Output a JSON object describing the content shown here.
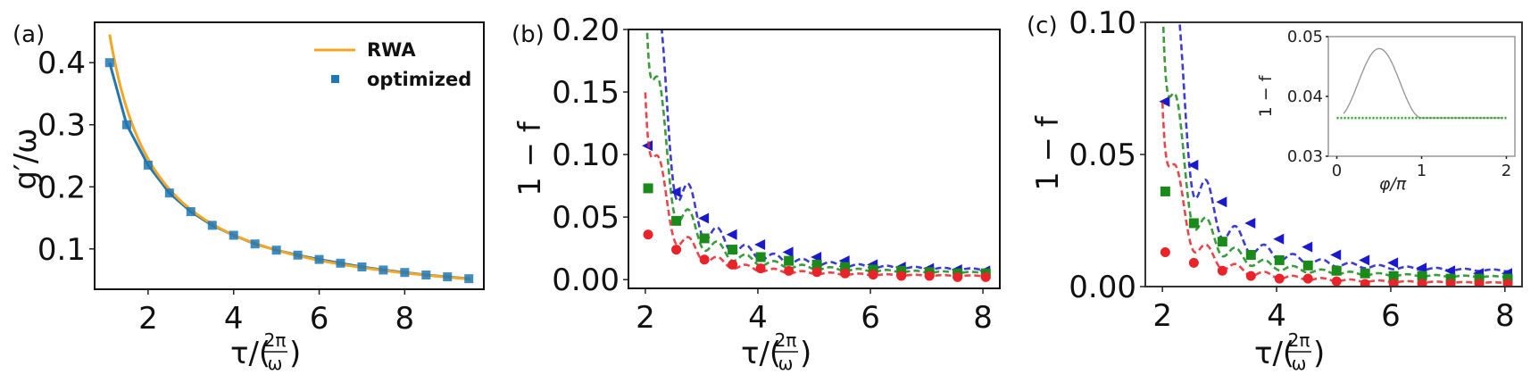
{
  "figure": {
    "panels": [
      "(a)",
      "(b)",
      "(c)"
    ]
  },
  "chart_data": [
    {
      "panel": "(a)",
      "type": "line",
      "title": "",
      "xlabel": "τ/(2π/ω)",
      "ylabel": "g′/ω",
      "xlim": [
        0.75,
        9.85
      ],
      "ylim": [
        0.035,
        0.465
      ],
      "xticks": [
        2,
        4,
        6,
        8
      ],
      "yticks": [
        0.1,
        0.2,
        0.3,
        0.4
      ],
      "xtick_labels": [
        "2",
        "4",
        "6",
        "8"
      ],
      "ytick_labels": [
        "0.1",
        "0.2",
        "0.3",
        "0.4"
      ],
      "grid": false,
      "legend_position": "upper right",
      "series": [
        {
          "name": "RWA",
          "style": "solid line",
          "color": "#f5a623",
          "formula": "0.5 / tau",
          "x": [
            1.1,
            1.3,
            1.5,
            1.75,
            2.0,
            2.5,
            3.0,
            3.5,
            4.0,
            4.5,
            5.0,
            5.5,
            6.0,
            6.5,
            7.0,
            7.5,
            8.0,
            8.5,
            9.0,
            9.5
          ],
          "values": [
            0.445,
            0.385,
            0.333,
            0.286,
            0.25,
            0.2,
            0.167,
            0.143,
            0.125,
            0.111,
            0.1,
            0.091,
            0.083,
            0.077,
            0.071,
            0.067,
            0.063,
            0.059,
            0.056,
            0.053
          ]
        },
        {
          "name": "optimized",
          "style": "square markers with line",
          "color": "#1f77b4",
          "x": [
            1.1,
            1.5,
            2.0,
            2.5,
            3.0,
            3.5,
            4.0,
            4.5,
            5.0,
            5.5,
            6.0,
            6.5,
            7.0,
            7.5,
            8.0,
            8.5,
            9.0,
            9.5
          ],
          "values": [
            0.4,
            0.3,
            0.235,
            0.19,
            0.16,
            0.138,
            0.122,
            0.108,
            0.098,
            0.09,
            0.083,
            0.077,
            0.071,
            0.066,
            0.062,
            0.058,
            0.055,
            0.052
          ]
        }
      ]
    },
    {
      "panel": "(b)",
      "type": "line",
      "title": "",
      "xlabel": "τ/(2π/ω)",
      "ylabel": "1 − f",
      "xlim": [
        1.7,
        8.3
      ],
      "ylim": [
        -0.007,
        0.2
      ],
      "xticks": [
        2,
        4,
        6,
        8
      ],
      "yticks": [
        0.0,
        0.05,
        0.1,
        0.15,
        0.2
      ],
      "xtick_labels": [
        "2",
        "4",
        "6",
        "8"
      ],
      "ytick_labels": [
        "0.00",
        "0.05",
        "0.10",
        "0.15",
        "0.20"
      ],
      "grid": false,
      "legend_position": "none",
      "series": [
        {
          "name": "blue (dashed + left-triangle markers)",
          "color": "#1a1acc",
          "marker": "triangle-left",
          "amp": 0.19,
          "floor": 0.006,
          "decay": 1.9,
          "marker_x": [
            2.05,
            2.55,
            3.05,
            3.55,
            4.05,
            4.55,
            5.05,
            5.55,
            6.05,
            6.55,
            7.05,
            7.55,
            8.05
          ],
          "marker_values": [
            0.107,
            0.07,
            0.049,
            0.036,
            0.028,
            0.022,
            0.018,
            0.015,
            0.012,
            0.01,
            0.009,
            0.008,
            0.007
          ]
        },
        {
          "name": "green (dashed + square markers)",
          "color": "#1a8a1a",
          "marker": "square",
          "amp": 0.14,
          "floor": 0.004,
          "decay": 1.9,
          "marker_x": [
            2.05,
            2.55,
            3.05,
            3.55,
            4.05,
            4.55,
            5.05,
            5.55,
            6.05,
            6.55,
            7.05,
            7.55,
            8.05
          ],
          "marker_values": [
            0.073,
            0.047,
            0.033,
            0.024,
            0.018,
            0.015,
            0.012,
            0.01,
            0.008,
            0.007,
            0.006,
            0.005,
            0.005
          ]
        },
        {
          "name": "red (dashed + circle markers)",
          "color": "#e8242a",
          "marker": "circle",
          "amp": 0.086,
          "floor": 0.002,
          "decay": 1.9,
          "marker_x": [
            2.05,
            2.55,
            3.05,
            3.55,
            4.05,
            4.55,
            5.05,
            5.55,
            6.05,
            6.55,
            7.05,
            7.55,
            8.05
          ],
          "marker_values": [
            0.036,
            0.024,
            0.016,
            0.012,
            0.009,
            0.007,
            0.006,
            0.005,
            0.004,
            0.003,
            0.003,
            0.002,
            0.002
          ]
        }
      ]
    },
    {
      "panel": "(c)",
      "type": "line",
      "title": "",
      "xlabel": "τ/(2π/ω)",
      "ylabel": "1 − f",
      "xlim": [
        1.7,
        8.3
      ],
      "ylim": [
        0.0,
        0.1
      ],
      "xticks": [
        2,
        4,
        6,
        8
      ],
      "yticks": [
        0.0,
        0.05,
        0.1
      ],
      "xtick_labels": [
        "2",
        "4",
        "6",
        "8"
      ],
      "ytick_labels": [
        "0.00",
        "0.05",
        "0.10"
      ],
      "grid": false,
      "legend_position": "none",
      "series": [
        {
          "name": "blue (dashed + left-triangle markers)",
          "color": "#1a1acc",
          "marker": "triangle-left",
          "amp": 0.095,
          "floor": 0.005,
          "decay": 1.9,
          "marker_x": [
            2.05,
            2.55,
            3.05,
            3.55,
            4.05,
            4.55,
            5.05,
            5.55,
            6.05,
            6.55,
            7.05,
            7.55,
            8.05
          ],
          "marker_values": [
            0.07,
            0.046,
            0.032,
            0.024,
            0.018,
            0.015,
            0.012,
            0.01,
            0.009,
            0.007,
            0.006,
            0.005,
            0.005
          ]
        },
        {
          "name": "green (dashed + square markers)",
          "color": "#1a8a1a",
          "marker": "square",
          "amp": 0.062,
          "floor": 0.003,
          "decay": 1.9,
          "marker_x": [
            2.05,
            2.55,
            3.05,
            3.55,
            4.05,
            4.55,
            5.05,
            5.55,
            6.05,
            6.55,
            7.05,
            7.55,
            8.05
          ],
          "marker_values": [
            0.036,
            0.024,
            0.017,
            0.012,
            0.01,
            0.008,
            0.006,
            0.005,
            0.004,
            0.004,
            0.003,
            0.003,
            0.003
          ]
        },
        {
          "name": "red (dashed + circle markers)",
          "color": "#e8242a",
          "marker": "circle",
          "amp": 0.04,
          "floor": 0.001,
          "decay": 1.9,
          "marker_x": [
            2.05,
            2.55,
            3.05,
            3.55,
            4.05,
            4.55,
            5.05,
            5.55,
            6.05,
            6.55,
            7.05,
            7.55,
            8.05
          ],
          "marker_values": [
            0.013,
            0.009,
            0.006,
            0.004,
            0.003,
            0.003,
            0.002,
            0.001,
            0.001,
            0.001,
            0.001,
            0.001,
            0.001
          ]
        }
      ],
      "inset": {
        "type": "line",
        "xlabel": "φ/π",
        "ylabel": "1 − f",
        "xlim": [
          -0.1,
          2.1
        ],
        "ylim": [
          0.03,
          0.05
        ],
        "xticks": [
          0,
          1,
          2
        ],
        "yticks": [
          0.03,
          0.04,
          0.05
        ],
        "xtick_labels": [
          "0",
          "1",
          "2"
        ],
        "ytick_labels": [
          "0.03",
          "0.04",
          "0.05"
        ],
        "series": [
          {
            "name": "grey solid",
            "color": "#9a9a9a",
            "x": [
              0.0,
              0.1,
              0.25,
              0.4,
              0.5,
              0.6,
              0.75,
              0.9,
              1.0,
              1.1,
              1.25,
              1.4,
              1.5,
              1.6,
              1.75,
              1.9,
              2.0
            ],
            "values": [
              0.0365,
              0.0368,
              0.0415,
              0.0465,
              0.048,
              0.0465,
              0.0415,
              0.0368,
              0.0365,
              0.0368,
              0.0415,
              0.0465,
              0.048,
              0.0465,
              0.0415,
              0.0368,
              0.0365
            ]
          },
          {
            "name": "green dotted (constant)",
            "color": "#2ca02c",
            "x": [
              0.0,
              2.0
            ],
            "values": [
              0.0364,
              0.0364
            ]
          }
        ]
      }
    }
  ]
}
